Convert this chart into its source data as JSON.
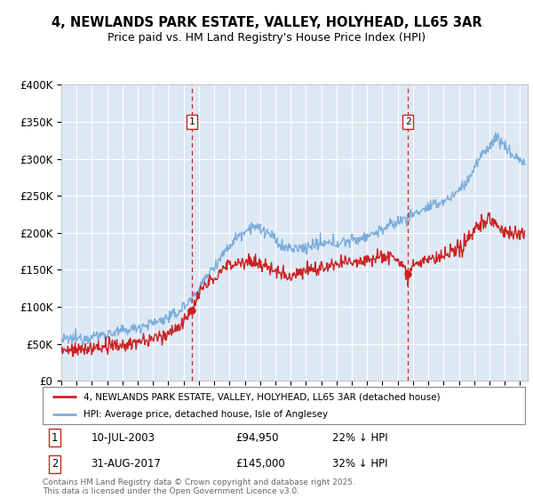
{
  "title": "4, NEWLANDS PARK ESTATE, VALLEY, HOLYHEAD, LL65 3AR",
  "subtitle": "Price paid vs. HM Land Registry's House Price Index (HPI)",
  "plot_bg_color": "#dde8f5",
  "outer_bg_color": "#ffffff",
  "red_line_color": "#cc2222",
  "blue_line_color": "#7aaddb",
  "vline_color": "#cc2222",
  "marker1_date": 2003.53,
  "marker2_date": 2017.66,
  "legend_red": "4, NEWLANDS PARK ESTATE, VALLEY, HOLYHEAD, LL65 3AR (detached house)",
  "legend_blue": "HPI: Average price, detached house, Isle of Anglesey",
  "annotation1": [
    "1",
    "10-JUL-2003",
    "£94,950",
    "22% ↓ HPI"
  ],
  "annotation2": [
    "2",
    "31-AUG-2017",
    "£145,000",
    "32% ↓ HPI"
  ],
  "footer": "Contains HM Land Registry data © Crown copyright and database right 2025.\nThis data is licensed under the Open Government Licence v3.0.",
  "ylim": [
    0,
    400000
  ],
  "xlim_start": 1995.0,
  "xlim_end": 2025.5
}
